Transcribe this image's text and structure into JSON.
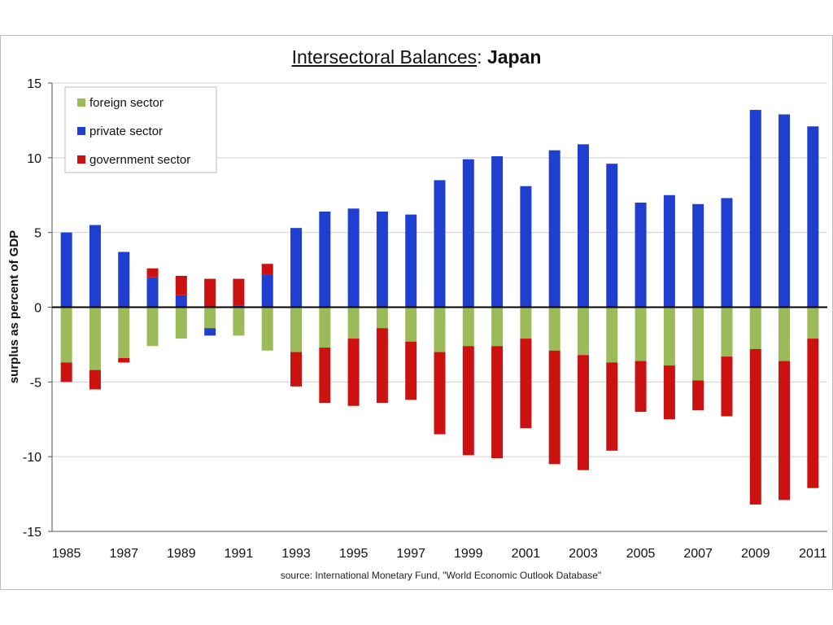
{
  "chart_data": {
    "type": "bar",
    "stacked": true,
    "title": "Intersectoral Balances",
    "title_separator": ": ",
    "title_country": "Japan",
    "ylabel": "surplus as percent of GDP",
    "xlabel": "",
    "ylim": [
      -15,
      15
    ],
    "yticks": [
      15,
      10,
      5,
      0,
      -5,
      -10,
      -15
    ],
    "grid": true,
    "legend_position": "top-left",
    "source": "source:  International Monetary Fund, \"World Economic Outlook Database\"",
    "categories": [
      "1985",
      "1986",
      "1987",
      "1988",
      "1989",
      "1990",
      "1991",
      "1992",
      "1993",
      "1994",
      "1995",
      "1996",
      "1997",
      "1998",
      "1999",
      "2000",
      "2001",
      "2002",
      "2003",
      "2004",
      "2005",
      "2006",
      "2007",
      "2008",
      "2009",
      "2010",
      "2011"
    ],
    "x_tick_labels": [
      "1985",
      "1987",
      "1989",
      "1991",
      "1993",
      "1995",
      "1997",
      "1999",
      "2001",
      "2003",
      "2005",
      "2007",
      "2009",
      "2011"
    ],
    "series": [
      {
        "name": "foreign sector",
        "color": "#9bbb59",
        "values": [
          -3.7,
          -4.2,
          -3.4,
          -2.6,
          -2.1,
          -1.4,
          -1.9,
          -2.9,
          -3.0,
          -2.7,
          -2.1,
          -1.4,
          -2.3,
          -3.0,
          -2.6,
          -2.6,
          -2.1,
          -2.9,
          -3.2,
          -3.7,
          -3.6,
          -3.9,
          -4.9,
          -3.3,
          -2.8,
          -3.6,
          -2.1
        ]
      },
      {
        "name": "private sector",
        "color": "#1f3fd1",
        "values": [
          5.0,
          5.5,
          3.7,
          2.0,
          0.8,
          -0.5,
          0.1,
          2.2,
          5.3,
          6.4,
          6.6,
          6.4,
          6.2,
          8.5,
          9.9,
          10.1,
          8.1,
          10.5,
          10.9,
          9.6,
          7.0,
          7.5,
          6.9,
          7.3,
          13.2,
          12.9,
          12.1
        ]
      },
      {
        "name": "government sector",
        "color": "#cc1111",
        "values": [
          -1.3,
          -1.3,
          -0.3,
          0.6,
          1.3,
          1.9,
          1.8,
          0.7,
          -2.3,
          -3.7,
          -4.5,
          -5.0,
          -3.9,
          -5.5,
          -7.3,
          -7.5,
          -6.0,
          -7.6,
          -7.7,
          -5.9,
          -3.4,
          -3.6,
          -2.0,
          -4.0,
          -10.4,
          -9.3,
          -10.0
        ]
      }
    ]
  }
}
